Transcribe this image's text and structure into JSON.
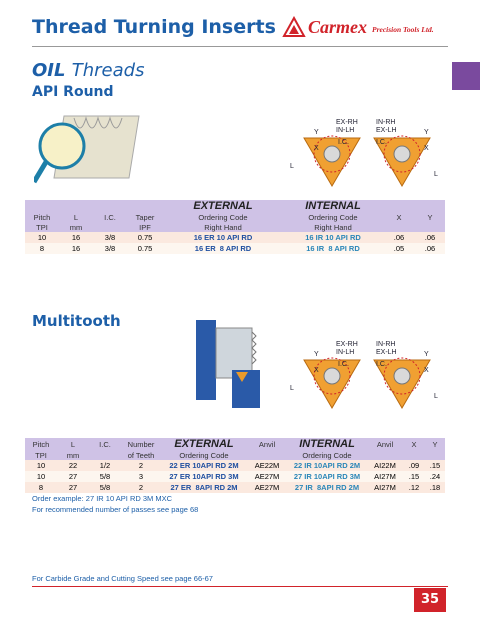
{
  "header": {
    "title": "Thread Turning Inserts",
    "logo": "Carmex",
    "logo_tagline": "Precision Tools Ltd."
  },
  "sections": [
    {
      "title_bold": "OIL",
      "title_rest": "Threads",
      "subtitle": "API Round",
      "diagram": {
        "label_left_1": "EX-RH",
        "label_left_2": "IN-LH",
        "label_right_1": "IN-RH",
        "label_right_2": "EX-LH",
        "ic": "I.C.",
        "x": "X",
        "y": "Y",
        "l": "L"
      },
      "table": {
        "columns": [
          {
            "lines": [
              "Pitch",
              "TPI"
            ]
          },
          {
            "lines": [
              "L",
              "mm"
            ]
          },
          {
            "lines": [
              "I.C."
            ]
          },
          {
            "lines": [
              "Taper",
              "IPF"
            ]
          },
          {
            "group": "EXTERNAL",
            "lines": [
              "Ordering Code",
              "Right Hand"
            ]
          },
          {
            "group": "INTERNAL",
            "lines": [
              "Ordering Code",
              "Right Hand"
            ]
          },
          {
            "lines": [
              "X"
            ]
          },
          {
            "lines": [
              "Y"
            ]
          }
        ],
        "rows": [
          [
            "10",
            "16",
            "3/8",
            "0.75",
            "16 ER 10 API RD",
            "16 IR 10 API RD",
            ".06",
            ".06"
          ],
          [
            "8",
            "16",
            "3/8",
            "0.75",
            "16 ER  8 API RD",
            "16 IR  8 API RD",
            ".05",
            ".06"
          ]
        ]
      }
    },
    {
      "title": "Multitooth",
      "diagram": {
        "label_left_1": "EX-RH",
        "label_left_2": "IN-LH",
        "label_right_1": "IN-RH",
        "label_right_2": "EX-LH",
        "ic": "I.C.",
        "x": "X",
        "y": "Y",
        "l": "L"
      },
      "table": {
        "columns": [
          {
            "lines": [
              "Pitch",
              "TPI"
            ]
          },
          {
            "lines": [
              "L",
              "mm"
            ]
          },
          {
            "lines": [
              "I.C."
            ]
          },
          {
            "lines": [
              "Number",
              "of Teeth"
            ]
          },
          {
            "group": "EXTERNAL",
            "lines": [
              "Ordering Code"
            ]
          },
          {
            "lines": [
              "Anvil"
            ]
          },
          {
            "group": "INTERNAL",
            "lines": [
              "Ordering Code"
            ]
          },
          {
            "lines": [
              "Anvil"
            ]
          },
          {
            "lines": [
              "X"
            ]
          },
          {
            "lines": [
              "Y"
            ]
          }
        ],
        "rows": [
          [
            "10",
            "22",
            "1/2",
            "2",
            "22 ER 10API RD 2M",
            "AE22M",
            "22 IR 10API RD 2M",
            "AI22M",
            ".09",
            ".15"
          ],
          [
            "10",
            "27",
            "5/8",
            "3",
            "27 ER 10API RD 3M",
            "AE27M",
            "27 IR 10API RD 3M",
            "AI27M",
            ".15",
            ".24"
          ],
          [
            "8",
            "27",
            "5/8",
            "2",
            "27 ER  8API RD 2M",
            "AE27M",
            "27 IR  8API RD 2M",
            "AI27M",
            ".12",
            ".18"
          ]
        ]
      },
      "notes": [
        "Order example: 27 IR 10 API RD 3M MXC",
        "For recommended number of passes see page 68"
      ]
    }
  ],
  "footer": {
    "note": "For Carbide Grade and Cutting Speed see page 66-67",
    "page_number": "35"
  }
}
